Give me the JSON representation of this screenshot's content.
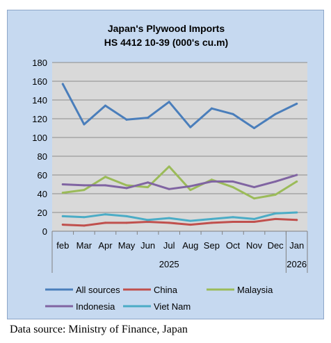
{
  "chart_data": {
    "type": "line",
    "title": "Japan's Plywood Imports",
    "subtitle": "HS 4412 10-39  (000's cu.m)",
    "categories": [
      "feb",
      "Mar",
      "Apr",
      "May",
      "Jun",
      "Jul",
      "Aug",
      "Sep",
      "Oct",
      "Nov",
      "Dec",
      "Jan"
    ],
    "years": [
      {
        "label": "2025",
        "from": 0,
        "to": 10
      },
      {
        "label": "2026",
        "from": 11,
        "to": 11
      }
    ],
    "ylim": [
      0,
      180
    ],
    "yticks": [
      0,
      20,
      40,
      60,
      80,
      100,
      120,
      140,
      160,
      180
    ],
    "grid": true,
    "legend_position": "bottom",
    "series": [
      {
        "name": "All sources",
        "color": "#4a7ebb",
        "values": [
          157,
          114,
          134,
          119,
          121,
          138,
          111,
          131,
          125,
          110,
          125,
          136
        ]
      },
      {
        "name": "China",
        "color": "#c0504d",
        "values": [
          7,
          6,
          9,
          9,
          10,
          9,
          7,
          9,
          10,
          10,
          13,
          12
        ]
      },
      {
        "name": "Malaysia",
        "color": "#9bbb59",
        "values": [
          41,
          44,
          58,
          49,
          47,
          69,
          44,
          55,
          47,
          35,
          39,
          53
        ]
      },
      {
        "name": "Indonesia",
        "color": "#8064a2",
        "values": [
          50,
          49,
          49,
          46,
          52,
          45,
          48,
          53,
          53,
          47,
          53,
          60
        ]
      },
      {
        "name": "Viet Nam",
        "color": "#4bacc6",
        "values": [
          16,
          15,
          18,
          16,
          12,
          14,
          11,
          13,
          15,
          13,
          19,
          20
        ]
      }
    ]
  },
  "source_note": "Data source: Ministry of Finance, Japan"
}
